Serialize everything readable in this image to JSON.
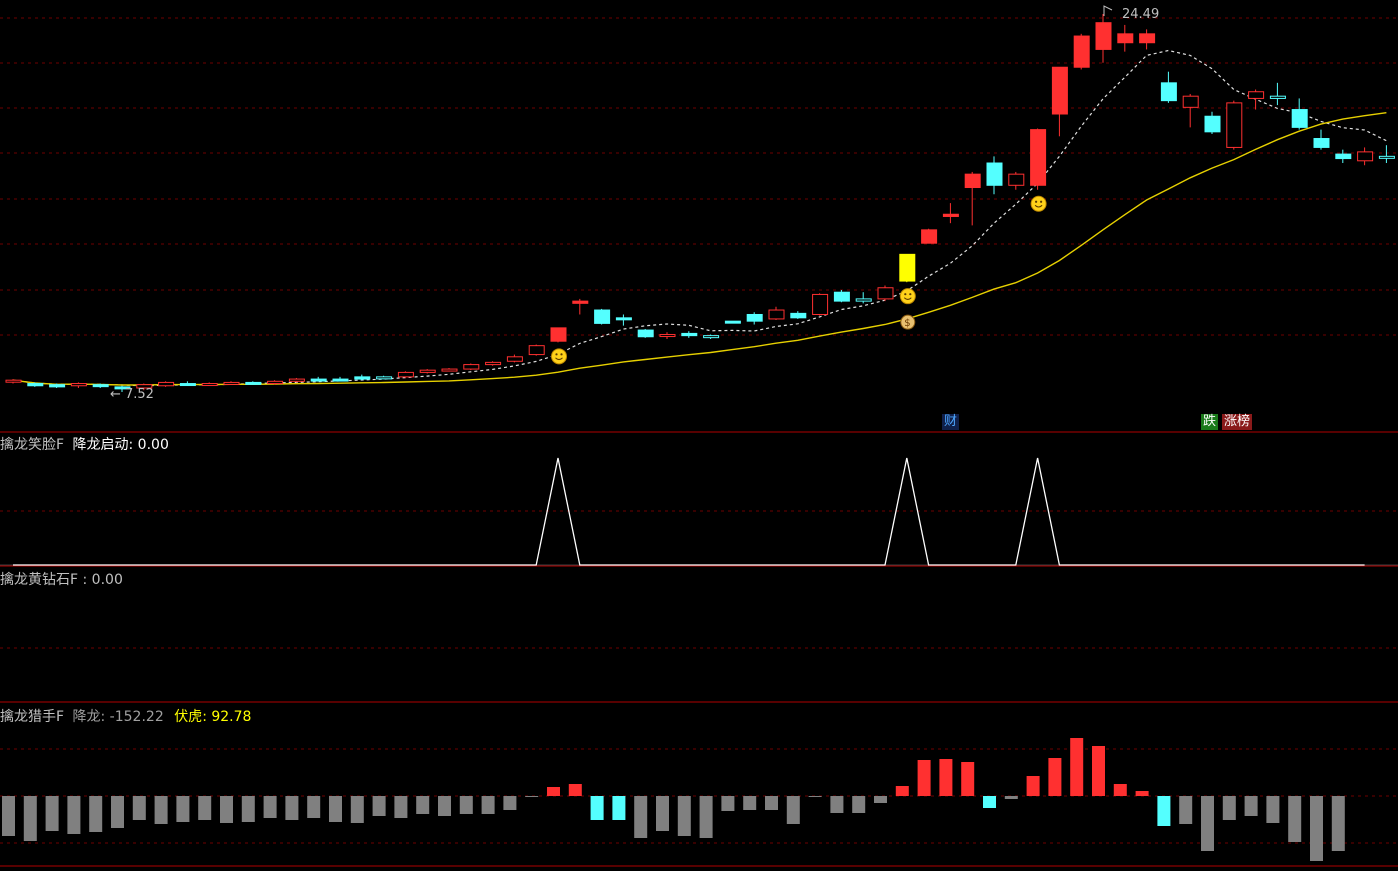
{
  "main_chart": {
    "high_label": "24.49",
    "low_label": "7.52",
    "event_tags": [
      {
        "id": "cai",
        "text": "财",
        "color": "#4da6ff",
        "bg": "#10204a"
      },
      {
        "id": "die",
        "text": "跌",
        "color": "#ffffff",
        "bg": "#1a7a1a"
      },
      {
        "id": "zhangbang",
        "text": "涨榜",
        "color": "#ffffff",
        "bg": "#8a1a1a"
      }
    ],
    "markers": [
      {
        "type": "smiley",
        "candle": 25
      },
      {
        "type": "smiley",
        "candle": 41
      },
      {
        "type": "money-bag",
        "candle": 41
      },
      {
        "type": "smiley",
        "candle": 47
      }
    ],
    "candles": [
      [
        8.0,
        8.05,
        7.9,
        8.1,
        "up"
      ],
      [
        7.9,
        7.8,
        7.75,
        7.95,
        "down"
      ],
      [
        7.85,
        7.75,
        7.7,
        7.9,
        "down"
      ],
      [
        7.8,
        7.9,
        7.7,
        7.95,
        "up"
      ],
      [
        7.85,
        7.8,
        7.7,
        7.9,
        "down"
      ],
      [
        7.75,
        7.7,
        7.52,
        7.8,
        "down"
      ],
      [
        7.7,
        7.85,
        7.6,
        7.9,
        "up"
      ],
      [
        7.8,
        7.95,
        7.75,
        8.0,
        "up"
      ],
      [
        7.9,
        7.85,
        7.8,
        8.0,
        "down"
      ],
      [
        7.85,
        7.9,
        7.8,
        7.95,
        "up"
      ],
      [
        7.9,
        7.95,
        7.85,
        8.0,
        "up"
      ],
      [
        7.95,
        7.9,
        7.85,
        8.0,
        "down"
      ],
      [
        7.9,
        8.0,
        7.85,
        8.05,
        "up"
      ],
      [
        8.0,
        8.1,
        7.95,
        8.15,
        "up"
      ],
      [
        8.1,
        8.05,
        8.0,
        8.2,
        "down"
      ],
      [
        8.05,
        8.1,
        8.0,
        8.2,
        "down"
      ],
      [
        8.1,
        8.2,
        8.05,
        8.3,
        "down"
      ],
      [
        8.2,
        8.15,
        8.1,
        8.25,
        "flat"
      ],
      [
        8.2,
        8.4,
        8.15,
        8.45,
        "up"
      ],
      [
        8.4,
        8.5,
        8.35,
        8.55,
        "up"
      ],
      [
        8.5,
        8.55,
        8.45,
        8.6,
        "up"
      ],
      [
        8.55,
        8.75,
        8.5,
        8.8,
        "up"
      ],
      [
        8.75,
        8.85,
        8.7,
        8.9,
        "up"
      ],
      [
        8.9,
        9.1,
        8.85,
        9.2,
        "up"
      ],
      [
        9.2,
        9.6,
        9.15,
        9.65,
        "up"
      ],
      [
        9.8,
        10.4,
        9.75,
        10.4,
        "fill"
      ],
      [
        11.6,
        11.5,
        11.0,
        11.7,
        "fill"
      ],
      [
        11.2,
        10.6,
        10.55,
        11.25,
        "down"
      ],
      [
        10.8,
        10.85,
        10.5,
        11.0,
        "down"
      ],
      [
        10.3,
        10.0,
        9.95,
        10.35,
        "down"
      ],
      [
        10.05,
        10.1,
        9.9,
        10.2,
        "up"
      ],
      [
        10.15,
        10.05,
        9.95,
        10.25,
        "down"
      ],
      [
        10.05,
        10.0,
        9.9,
        10.1,
        "flat"
      ],
      [
        10.7,
        10.7,
        10.7,
        10.7,
        "down"
      ],
      [
        11.0,
        10.7,
        10.55,
        11.1,
        "down"
      ],
      [
        10.8,
        11.2,
        10.75,
        11.35,
        "up"
      ],
      [
        11.05,
        10.85,
        10.8,
        11.15,
        "down"
      ],
      [
        11.0,
        11.9,
        10.95,
        11.95,
        "up"
      ],
      [
        11.6,
        12.0,
        11.55,
        12.1,
        "down"
      ],
      [
        11.6,
        11.7,
        11.5,
        12.0,
        "flat"
      ],
      [
        11.7,
        12.2,
        11.6,
        12.3,
        "up"
      ],
      [
        12.5,
        13.7,
        12.45,
        13.7,
        "yellow"
      ],
      [
        14.2,
        14.8,
        14.2,
        14.85,
        "fill"
      ],
      [
        15.5,
        15.4,
        15.1,
        16.0,
        "fill"
      ],
      [
        17.3,
        16.7,
        15.0,
        17.4,
        "fill"
      ],
      [
        16.8,
        17.8,
        16.4,
        18.1,
        "down"
      ],
      [
        16.8,
        17.3,
        16.6,
        17.4,
        "up"
      ],
      [
        16.8,
        19.3,
        16.6,
        19.35,
        "fill"
      ],
      [
        20.0,
        22.1,
        19.0,
        22.1,
        "fill"
      ],
      [
        22.1,
        23.5,
        22.0,
        23.6,
        "fill"
      ],
      [
        22.9,
        24.1,
        22.3,
        24.49,
        "fill"
      ],
      [
        23.2,
        23.6,
        22.8,
        24.0,
        "fill"
      ],
      [
        23.6,
        23.2,
        22.9,
        23.8,
        "fill"
      ],
      [
        21.4,
        20.6,
        20.5,
        21.9,
        "down"
      ],
      [
        20.3,
        20.8,
        19.4,
        20.9,
        "up"
      ],
      [
        19.2,
        19.9,
        19.1,
        20.1,
        "down"
      ],
      [
        20.5,
        18.5,
        18.4,
        20.6,
        "up"
      ],
      [
        20.7,
        21.0,
        20.2,
        21.1,
        "up"
      ],
      [
        20.8,
        20.7,
        20.4,
        21.4,
        "flat"
      ],
      [
        20.2,
        19.4,
        19.3,
        20.7,
        "down"
      ],
      [
        18.9,
        18.5,
        18.4,
        19.3,
        "down"
      ],
      [
        18.0,
        18.2,
        17.8,
        18.4,
        "down"
      ],
      [
        18.3,
        17.9,
        17.7,
        18.5,
        "up"
      ],
      [
        18.1,
        18.1,
        17.8,
        18.6,
        "flat"
      ]
    ]
  },
  "panel2": {
    "name": "擒龙笑脸F",
    "series_label": "降龙启动",
    "series_value": ": 0.00",
    "chart_data": {
      "type": "line",
      "x_start": 0,
      "peaks_at_candle": [
        25,
        41,
        47
      ],
      "values": [
        0,
        0,
        0,
        0,
        0,
        0,
        0,
        0,
        0,
        0,
        0,
        0,
        0,
        0,
        0,
        0,
        0,
        0,
        0,
        0,
        0,
        0,
        0,
        0,
        0,
        1,
        0,
        0,
        0,
        0,
        0,
        0,
        0,
        0,
        0,
        0,
        0,
        0,
        0,
        0,
        0,
        1,
        0,
        0,
        0,
        0,
        0,
        1,
        0,
        0,
        0,
        0,
        0,
        0,
        0,
        0,
        0,
        0,
        0,
        0,
        0,
        0,
        0
      ]
    }
  },
  "panel3": {
    "name": "擒龙黄钻石F",
    "value_text": " : 0.00"
  },
  "panel4": {
    "name": "擒龙猎手F",
    "series1_label": "降龙",
    "series1_value": ": -152.22",
    "series2_label": "伏虎",
    "series2_value": ": 92.78",
    "chart_data": {
      "type": "bar",
      "values": [
        [
          -40,
          "gray"
        ],
        [
          -45,
          "gray"
        ],
        [
          -35,
          "gray"
        ],
        [
          -38,
          "gray"
        ],
        [
          -36,
          "gray"
        ],
        [
          -32,
          "gray"
        ],
        [
          -24,
          "gray"
        ],
        [
          -28,
          "gray"
        ],
        [
          -26,
          "gray"
        ],
        [
          -24,
          "gray"
        ],
        [
          -27,
          "gray"
        ],
        [
          -26,
          "gray"
        ],
        [
          -22,
          "gray"
        ],
        [
          -24,
          "gray"
        ],
        [
          -22,
          "gray"
        ],
        [
          -26,
          "gray"
        ],
        [
          -27,
          "gray"
        ],
        [
          -20,
          "gray"
        ],
        [
          -22,
          "gray"
        ],
        [
          -18,
          "gray"
        ],
        [
          -20,
          "gray"
        ],
        [
          -18,
          "gray"
        ],
        [
          -18,
          "gray"
        ],
        [
          -14,
          "gray"
        ],
        [
          -1,
          "gray"
        ],
        [
          9,
          "red"
        ],
        [
          12,
          "red"
        ],
        [
          -24,
          "cyan"
        ],
        [
          -24,
          "cyan"
        ],
        [
          -42,
          "gray"
        ],
        [
          -35,
          "gray"
        ],
        [
          -40,
          "gray"
        ],
        [
          -42,
          "gray"
        ],
        [
          -15,
          "gray"
        ],
        [
          -14,
          "gray"
        ],
        [
          -14,
          "gray"
        ],
        [
          -28,
          "gray"
        ],
        [
          -1,
          "gray"
        ],
        [
          -17,
          "gray"
        ],
        [
          -17,
          "gray"
        ],
        [
          -7,
          "gray"
        ],
        [
          10,
          "red"
        ],
        [
          36,
          "red"
        ],
        [
          37,
          "red"
        ],
        [
          34,
          "red"
        ],
        [
          -12,
          "cyan"
        ],
        [
          -3,
          "gray"
        ],
        [
          20,
          "red"
        ],
        [
          38,
          "red"
        ],
        [
          58,
          "red"
        ],
        [
          50,
          "red"
        ],
        [
          12,
          "red"
        ],
        [
          5,
          "red"
        ],
        [
          -30,
          "cyan"
        ],
        [
          -28,
          "gray"
        ],
        [
          -55,
          "gray"
        ],
        [
          -24,
          "gray"
        ],
        [
          -20,
          "gray"
        ],
        [
          -27,
          "gray"
        ],
        [
          -46,
          "gray"
        ],
        [
          -65,
          "gray"
        ],
        [
          -55,
          "gray"
        ]
      ]
    }
  },
  "colors": {
    "up": "#ff3030",
    "down": "#54ffff",
    "yellow": "#ffff00",
    "separator": "#b00000",
    "grid": "#7a0000",
    "ma_white": "#e0e0e0",
    "ma_yellow": "#e6d000",
    "bar_gray": "#808080"
  }
}
